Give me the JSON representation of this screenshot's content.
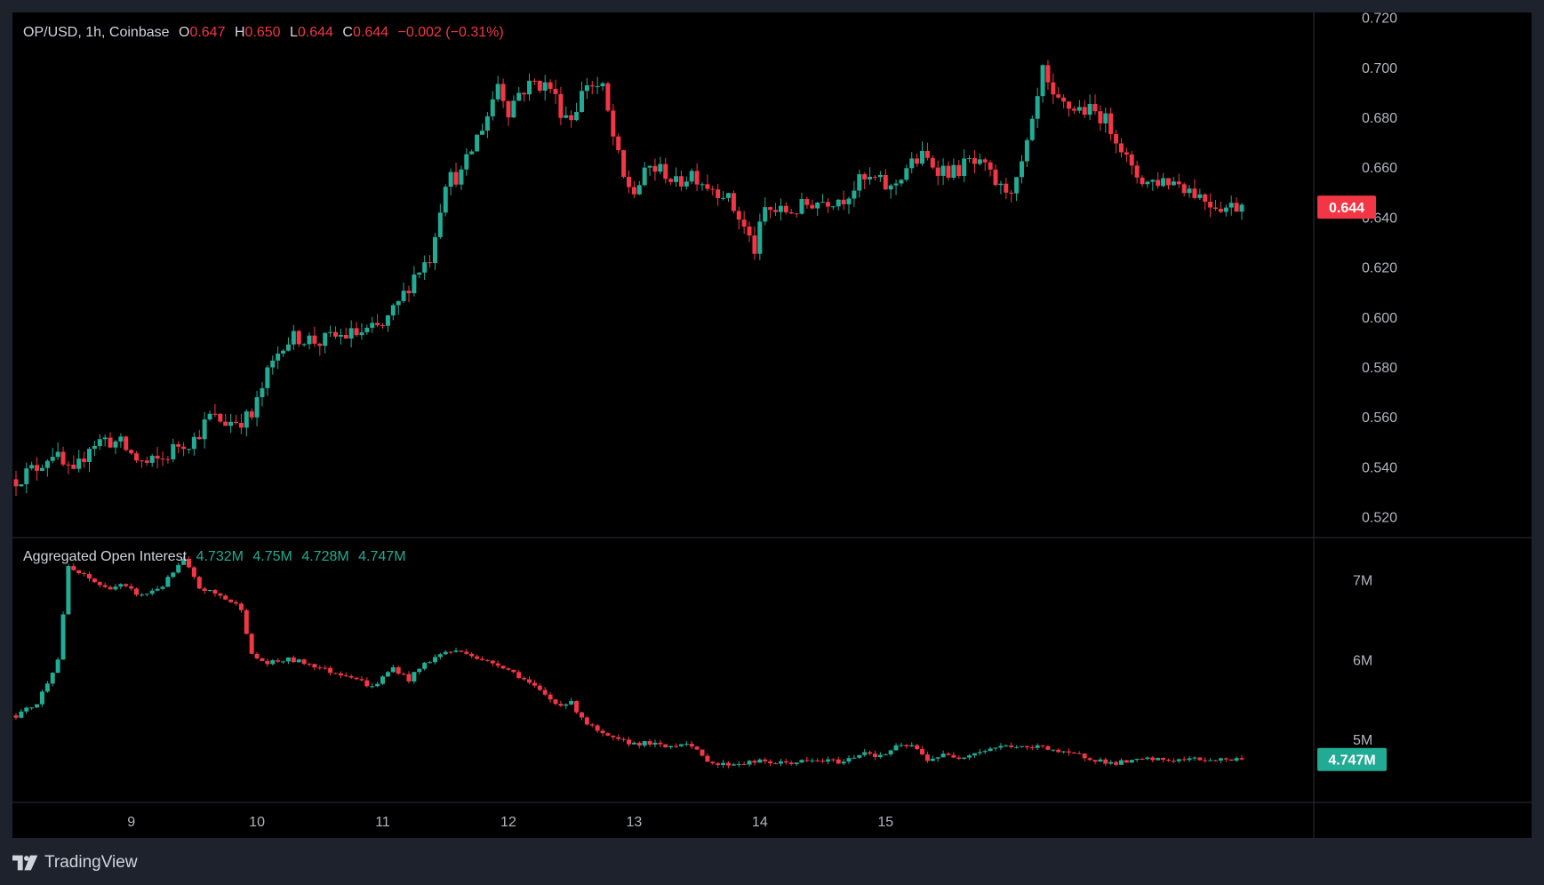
{
  "legend": {
    "symbol": "OP/USD, 1h, Coinbase",
    "open_label": "O",
    "open": "0.647",
    "high_label": "H",
    "high": "0.650",
    "low_label": "L",
    "low": "0.644",
    "close_label": "C",
    "close": "0.644",
    "change": "−0.002 (−0.31%)"
  },
  "oi_legend": {
    "name": "Aggregated Open Interest",
    "v1": "4.732M",
    "v2": "4.75M",
    "v3": "4.728M",
    "v4": "4.747M"
  },
  "footer": {
    "brand": "TradingView"
  },
  "colors": {
    "up": "#22ab94",
    "down": "#f23645",
    "background": "#000000",
    "frame": "#1e222d"
  },
  "chart_data": [
    {
      "type": "candlestick",
      "title": "OP/USD, 1h, Coinbase",
      "x_ticks": [
        "9",
        "10",
        "11",
        "12",
        "13",
        "14",
        "15"
      ],
      "y_ticks": [
        "0.720",
        "0.700",
        "0.680",
        "0.660",
        "0.640",
        "0.620",
        "0.600",
        "0.580",
        "0.560",
        "0.540",
        "0.520"
      ],
      "ylim": [
        0.512,
        0.722
      ],
      "last_price_label": "0.644",
      "last_price": 0.644,
      "anchors": [
        [
          0,
          0.535
        ],
        [
          4,
          0.54
        ],
        [
          7,
          0.546
        ],
        [
          9,
          0.54
        ],
        [
          11,
          0.536
        ],
        [
          14,
          0.549
        ],
        [
          17,
          0.551
        ],
        [
          20,
          0.549
        ],
        [
          23,
          0.543
        ],
        [
          25,
          0.541
        ],
        [
          28,
          0.543
        ],
        [
          31,
          0.549
        ],
        [
          34,
          0.551
        ],
        [
          37,
          0.56
        ],
        [
          40,
          0.558
        ],
        [
          43,
          0.559
        ],
        [
          45,
          0.56
        ],
        [
          48,
          0.577
        ],
        [
          51,
          0.59
        ],
        [
          54,
          0.592
        ],
        [
          58,
          0.59
        ],
        [
          61,
          0.592
        ],
        [
          64,
          0.593
        ],
        [
          67,
          0.594
        ],
        [
          70,
          0.596
        ],
        [
          73,
          0.605
        ],
        [
          76,
          0.617
        ],
        [
          79,
          0.624
        ],
        [
          82,
          0.655
        ],
        [
          85,
          0.657
        ],
        [
          88,
          0.672
        ],
        [
          90,
          0.681
        ],
        [
          92,
          0.694
        ],
        [
          94,
          0.683
        ],
        [
          96,
          0.69
        ],
        [
          99,
          0.694
        ],
        [
          102,
          0.692
        ],
        [
          104,
          0.683
        ],
        [
          106,
          0.68
        ],
        [
          109,
          0.694
        ],
        [
          112,
          0.691
        ],
        [
          114,
          0.672
        ],
        [
          116,
          0.655
        ],
        [
          118,
          0.65
        ],
        [
          121,
          0.66
        ],
        [
          124,
          0.658
        ],
        [
          126,
          0.653
        ],
        [
          129,
          0.658
        ],
        [
          132,
          0.653
        ],
        [
          135,
          0.65
        ],
        [
          138,
          0.64
        ],
        [
          141,
          0.627
        ],
        [
          143,
          0.643
        ],
        [
          146,
          0.642
        ],
        [
          149,
          0.643
        ],
        [
          152,
          0.646
        ],
        [
          155,
          0.647
        ],
        [
          158,
          0.648
        ],
        [
          161,
          0.654
        ],
        [
          164,
          0.655
        ],
        [
          167,
          0.651
        ],
        [
          170,
          0.66
        ],
        [
          173,
          0.664
        ],
        [
          176,
          0.66
        ],
        [
          179,
          0.658
        ],
        [
          182,
          0.662
        ],
        [
          185,
          0.659
        ],
        [
          188,
          0.651
        ],
        [
          191,
          0.653
        ],
        [
          194,
          0.676
        ],
        [
          196,
          0.698
        ],
        [
          198,
          0.686
        ],
        [
          201,
          0.684
        ],
        [
          204,
          0.683
        ],
        [
          207,
          0.681
        ],
        [
          210,
          0.673
        ],
        [
          213,
          0.658
        ],
        [
          216,
          0.654
        ],
        [
          219,
          0.655
        ],
        [
          222,
          0.654
        ],
        [
          225,
          0.65
        ],
        [
          228,
          0.646
        ],
        [
          231,
          0.644
        ],
        [
          234,
          0.645
        ]
      ]
    },
    {
      "type": "candlestick",
      "title": "Aggregated Open Interest",
      "y_ticks": [
        "7M",
        "6M",
        "5M"
      ],
      "ylim": [
        4.22,
        7.52
      ],
      "last_value_label": "4.747M",
      "last_value": 4.747,
      "anchors": [
        [
          0,
          5.3
        ],
        [
          4,
          5.45
        ],
        [
          8,
          6.0
        ],
        [
          10,
          7.15
        ],
        [
          13,
          7.05
        ],
        [
          17,
          6.9
        ],
        [
          20,
          6.93
        ],
        [
          24,
          6.8
        ],
        [
          28,
          6.93
        ],
        [
          32,
          7.25
        ],
        [
          35,
          6.9
        ],
        [
          39,
          6.8
        ],
        [
          43,
          6.65
        ],
        [
          45,
          6.05
        ],
        [
          48,
          5.95
        ],
        [
          52,
          6.0
        ],
        [
          56,
          5.95
        ],
        [
          60,
          5.85
        ],
        [
          64,
          5.8
        ],
        [
          68,
          5.65
        ],
        [
          72,
          5.9
        ],
        [
          75,
          5.75
        ],
        [
          78,
          5.95
        ],
        [
          82,
          6.1
        ],
        [
          86,
          6.1
        ],
        [
          89,
          5.98
        ],
        [
          92,
          5.95
        ],
        [
          96,
          5.8
        ],
        [
          100,
          5.6
        ],
        [
          103,
          5.45
        ],
        [
          106,
          5.45
        ],
        [
          109,
          5.2
        ],
        [
          112,
          5.05
        ],
        [
          115,
          4.98
        ],
        [
          118,
          4.95
        ],
        [
          121,
          4.95
        ],
        [
          124,
          4.9
        ],
        [
          128,
          4.97
        ],
        [
          131,
          4.78
        ],
        [
          134,
          4.68
        ],
        [
          138,
          4.7
        ],
        [
          142,
          4.72
        ],
        [
          146,
          4.7
        ],
        [
          150,
          4.72
        ],
        [
          154,
          4.73
        ],
        [
          158,
          4.72
        ],
        [
          162,
          4.85
        ],
        [
          165,
          4.78
        ],
        [
          168,
          4.9
        ],
        [
          171,
          4.92
        ],
        [
          174,
          4.75
        ],
        [
          177,
          4.8
        ],
        [
          180,
          4.78
        ],
        [
          184,
          4.85
        ],
        [
          187,
          4.9
        ],
        [
          190,
          4.92
        ],
        [
          193,
          4.88
        ],
        [
          196,
          4.92
        ],
        [
          200,
          4.82
        ],
        [
          203,
          4.8
        ],
        [
          206,
          4.75
        ],
        [
          209,
          4.7
        ],
        [
          213,
          4.72
        ],
        [
          216,
          4.75
        ],
        [
          219,
          4.74
        ],
        [
          222,
          4.74
        ],
        [
          225,
          4.75
        ],
        [
          228,
          4.747
        ],
        [
          234,
          4.747
        ]
      ]
    }
  ]
}
